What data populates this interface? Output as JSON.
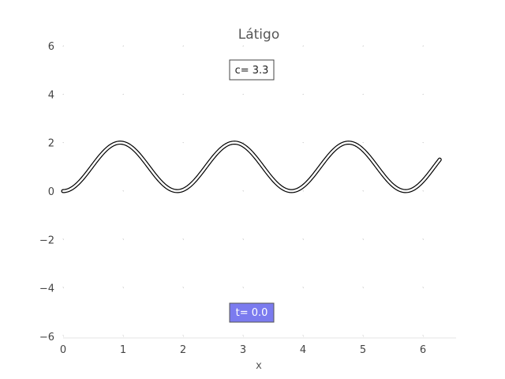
{
  "chart_data": {
    "type": "line",
    "title": "Látigo",
    "xlabel": "x",
    "ylabel": "",
    "xlim": [
      0,
      6.5
    ],
    "ylim": [
      -6,
      6
    ],
    "x_ticks": [
      "0",
      "1",
      "2",
      "3",
      "4",
      "5",
      "6"
    ],
    "y_ticks": [
      "6",
      "4",
      "2",
      "0",
      "−2",
      "−4",
      "−6"
    ],
    "grid": "dotted",
    "series": [
      {
        "function": "y = 1 - cos(3.3x)",
        "x_range": [
          0,
          6.28
        ],
        "style": "double black line",
        "color": "#000000"
      }
    ],
    "annotations": {
      "parameter_box": {
        "text": "c= 3.3",
        "position": "top-center",
        "background": "#ffffff"
      },
      "time_box": {
        "text": "t= 0.0",
        "position": "bottom-center",
        "background": "#7b7bef"
      }
    }
  }
}
